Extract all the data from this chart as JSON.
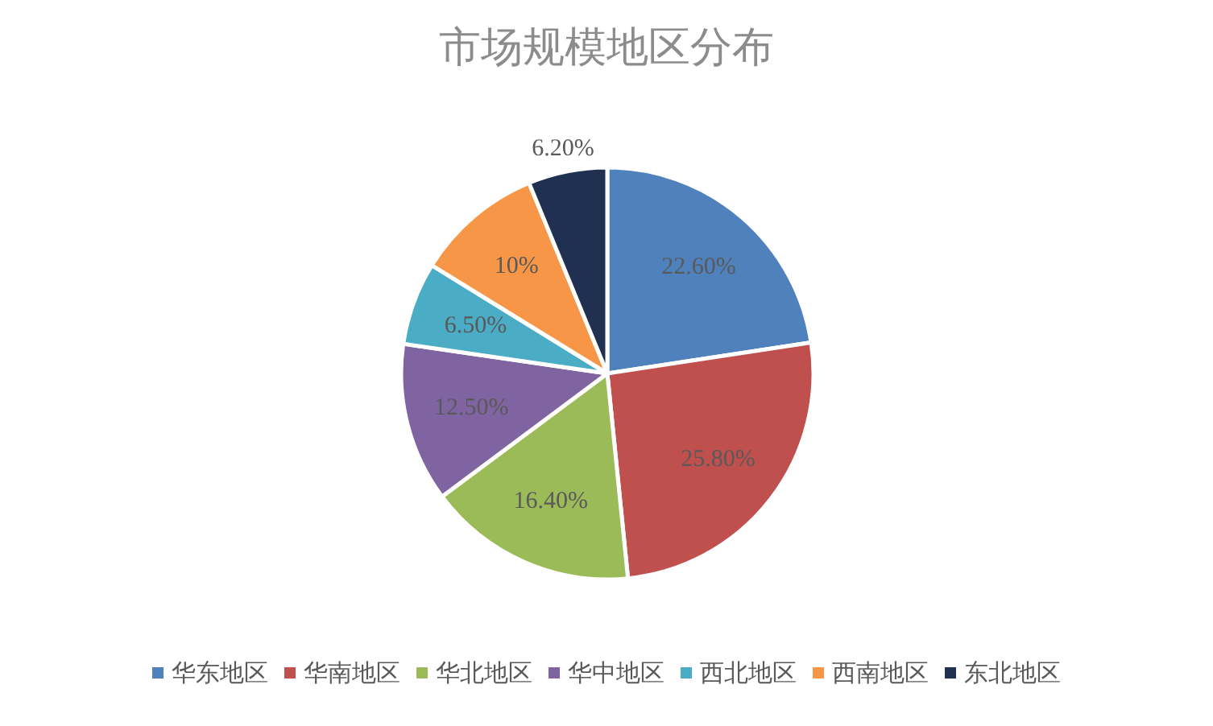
{
  "chart_data": {
    "type": "pie",
    "title": "市场规模地区分布",
    "categories": [
      "华东地区",
      "华南地区",
      "华北地区",
      "华中地区",
      "西北地区",
      "西南地区",
      "东北地区"
    ],
    "values": [
      22.6,
      25.8,
      16.4,
      12.5,
      6.5,
      10,
      6.2
    ],
    "value_labels": [
      "22.60%",
      "25.80%",
      "16.40%",
      "12.50%",
      "6.50%",
      "10%",
      "6.20%"
    ],
    "colors": [
      "#4f81bd",
      "#c0504d",
      "#9bbb59",
      "#8064a2",
      "#4bacc6",
      "#f79646",
      "#1f3050"
    ],
    "legend": "bottom"
  }
}
